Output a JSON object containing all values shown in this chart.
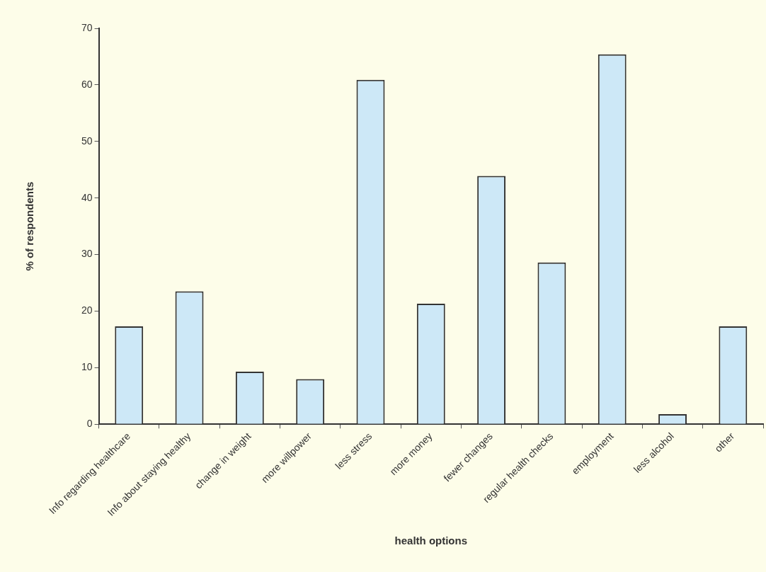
{
  "chart_data": {
    "type": "bar",
    "xlabel": "health options",
    "ylabel": "% of respondents",
    "categories": [
      "Info regarding healthcare",
      "Info about staying healthy",
      "change in weight",
      "more willpower",
      "less stress",
      "more money",
      "fewer changes",
      "regular health checks",
      "employment",
      "less alcohol",
      "other"
    ],
    "values": [
      17.3,
      23.5,
      9.3,
      8.0,
      60.9,
      21.3,
      43.9,
      28.6,
      65.4,
      1.8,
      17.3
    ],
    "color": "#cde8f7",
    "ylim": [
      0,
      70
    ],
    "yticks": [
      0,
      10,
      20,
      30,
      40,
      50,
      60,
      70
    ],
    "grid": false,
    "legend": false
  }
}
